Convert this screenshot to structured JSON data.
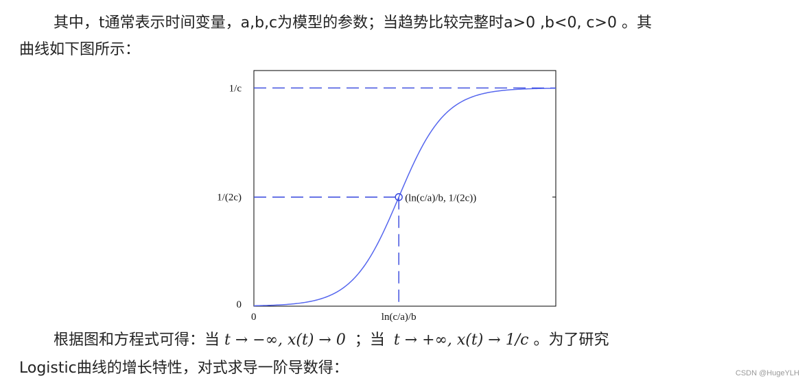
{
  "text": {
    "p1_line1": "其中，t通常表示时间变量，a,b,c为模型的参数；当趋势比较完整时a>0 ,b<0, c>0 。其",
    "p1_line2": "曲线如下图所示：",
    "p2_prefix": "根据图和方程式可得：当",
    "p2_math1": "t → −∞, x(t) → 0",
    "p2_sep": "；当",
    "p2_math2": "t → +∞, x(t) → 1/c",
    "p2_suffix": "。为了研究",
    "p2_line2": "Logistic曲线的增长特性，对式求导一阶导数得："
  },
  "watermark": "CSDN @HugeYLH",
  "chart_data": {
    "type": "line",
    "curve": "logistic",
    "x_tick_labels": [
      "0",
      "ln(c/a)/b"
    ],
    "y_tick_labels": [
      "0",
      "1/(2c)",
      "1/c"
    ],
    "y_levels": [
      0,
      0.5,
      1.0
    ],
    "x_range": [
      0,
      1
    ],
    "y_range": [
      0,
      1.08
    ],
    "inflection_point": {
      "x": 0.48,
      "y": 0.5,
      "label": "(ln(c/a)/b, 1/(2c))"
    },
    "asymptote_label": "1/c",
    "grid": false,
    "colors": {
      "curve": "#5566ee",
      "dash": "#3344dd",
      "axes": "#000000"
    }
  }
}
